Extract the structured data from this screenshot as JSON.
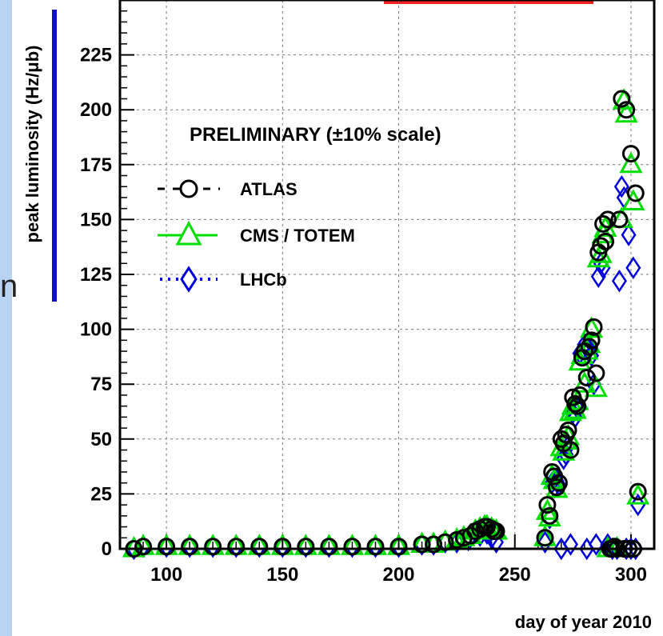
{
  "left_glyph": "n",
  "chart_data": {
    "type": "scatter",
    "title": "",
    "xlabel": "day of year 2010",
    "ylabel": "peak luminosity (Hz/μb)",
    "xlim": [
      80,
      310
    ],
    "ylim": [
      0,
      250
    ],
    "x_ticks": [
      100,
      150,
      200,
      250,
      300
    ],
    "y_ticks": [
      0,
      25,
      50,
      75,
      100,
      125,
      150,
      175,
      200,
      225
    ],
    "grid": true,
    "legend": {
      "placement": "upper-left",
      "header": "PRELIMINARY (±10% scale)",
      "entries": [
        "ATLAS",
        "CMS / TOTEM",
        "LHCb"
      ]
    },
    "series": [
      {
        "name": "ATLAS",
        "marker": "circle",
        "color": "#000000",
        "x": [
          86,
          90,
          100,
          110,
          120,
          130,
          140,
          150,
          160,
          170,
          180,
          190,
          200,
          210,
          215,
          220,
          225,
          228,
          231,
          233,
          235,
          237,
          238,
          240,
          241,
          242,
          263,
          264,
          265,
          266,
          267,
          268,
          269,
          270,
          271,
          272,
          273,
          274,
          275,
          276,
          277,
          278,
          279,
          280,
          281,
          282,
          283,
          284,
          285,
          286,
          287,
          288,
          289,
          290,
          291,
          292,
          293,
          294,
          295,
          296,
          297,
          298,
          299,
          300,
          301,
          302,
          303
        ],
        "y": [
          0,
          1,
          1,
          1,
          1,
          1,
          1,
          1,
          1,
          1,
          1,
          1,
          1,
          2,
          2,
          3,
          4,
          5,
          6,
          8,
          9,
          10,
          10,
          9,
          8,
          8,
          5,
          20,
          15,
          35,
          33,
          28,
          30,
          50,
          48,
          52,
          54,
          45,
          69,
          66,
          65,
          70,
          87,
          90,
          78,
          92,
          95,
          101,
          80,
          135,
          138,
          148,
          140,
          150,
          0,
          0,
          1,
          0,
          150,
          205,
          0,
          200,
          0,
          180,
          0,
          162,
          26
        ]
      },
      {
        "name": "CMS / TOTEM",
        "marker": "triangle",
        "color": "#00dd00",
        "x": [
          86,
          90,
          100,
          110,
          120,
          130,
          140,
          150,
          160,
          170,
          180,
          190,
          200,
          210,
          215,
          220,
          225,
          228,
          231,
          233,
          235,
          237,
          238,
          240,
          241,
          242,
          263,
          264,
          265,
          266,
          267,
          268,
          270,
          271,
          272,
          273,
          274,
          275,
          276,
          277,
          278,
          279,
          280,
          281,
          282,
          283,
          285,
          286,
          287,
          288,
          289,
          290,
          294,
          296,
          297,
          298,
          300,
          301,
          303
        ],
        "y": [
          0,
          1,
          1,
          1,
          1,
          1,
          1,
          1,
          1,
          1,
          1,
          1,
          1,
          2,
          2,
          3,
          4,
          5,
          6,
          8,
          9,
          10,
          10,
          9,
          8,
          8,
          5,
          17,
          14,
          33,
          31,
          27,
          46,
          44,
          49,
          51,
          62,
          65,
          63,
          67,
          85,
          88,
          75,
          90,
          93,
          100,
          73,
          132,
          134,
          143,
          146,
          0,
          0,
          150,
          204,
          198,
          175,
          158,
          24
        ]
      },
      {
        "name": "LHCb",
        "marker": "diamond",
        "color": "#0000dd",
        "x": [
          86,
          90,
          100,
          110,
          120,
          130,
          140,
          150,
          160,
          170,
          180,
          190,
          200,
          210,
          215,
          220,
          225,
          230,
          235,
          238,
          240,
          242,
          263,
          265,
          266,
          267,
          268,
          269,
          270,
          271,
          272,
          273,
          274,
          275,
          276,
          277,
          278,
          280,
          281,
          282,
          283,
          284,
          285,
          286,
          287,
          288,
          290,
          292,
          294,
          295,
          296,
          297,
          298,
          299,
          300,
          301,
          302,
          303
        ],
        "y": [
          0,
          1,
          1,
          1,
          1,
          1,
          1,
          1,
          1,
          1,
          1,
          1,
          1,
          2,
          2,
          3,
          3,
          4,
          6,
          7,
          5,
          3,
          3,
          14,
          30,
          28,
          31,
          29,
          0,
          41,
          43,
          47,
          2,
          62,
          60,
          64,
          89,
          93,
          0,
          91,
          88,
          75,
          2,
          124,
          130,
          128,
          2,
          0,
          0,
          122,
          165,
          160,
          0,
          143,
          0,
          128,
          0,
          20
        ]
      }
    ]
  }
}
